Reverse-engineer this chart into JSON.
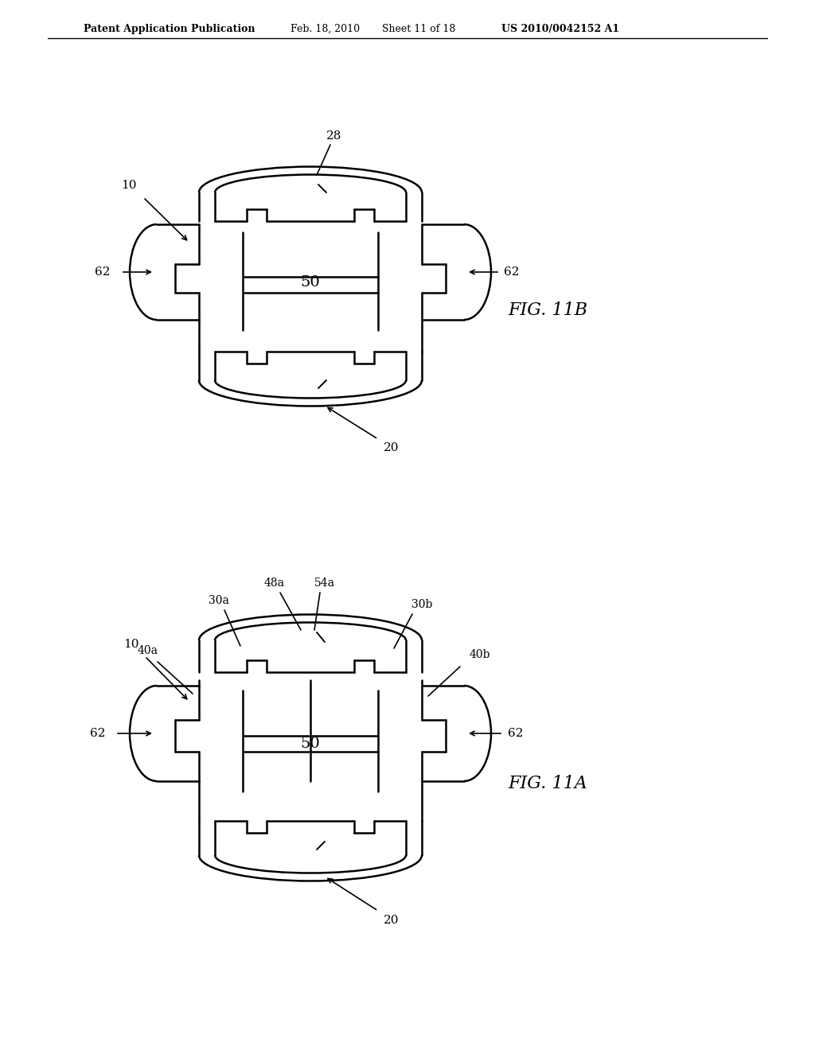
{
  "bg_color": "#ffffff",
  "line_color": "#000000",
  "header_text": "Patent Application Publication",
  "header_date": "Feb. 18, 2010",
  "header_sheet": "Sheet 11 of 18",
  "header_patent": "US 2010/0042152 A1",
  "fig_top_label": "FIG. 11B",
  "fig_bottom_label": "FIG. 11A"
}
